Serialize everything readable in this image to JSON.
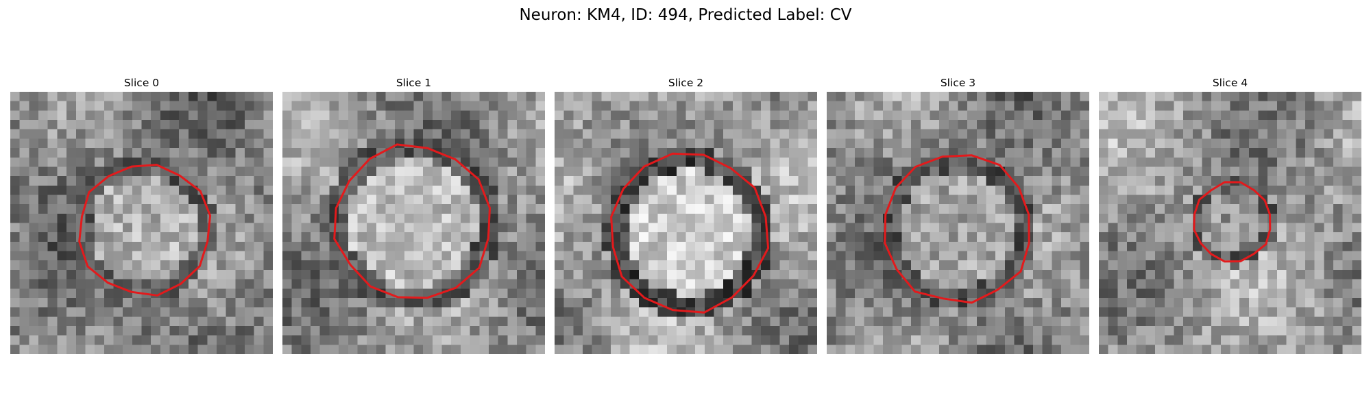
{
  "figure": {
    "title": "Neuron: KM4, ID: 494, Predicted Label: CV"
  },
  "panels": [
    {
      "title": "Slice 0"
    },
    {
      "title": "Slice 1"
    },
    {
      "title": "Slice 2"
    },
    {
      "title": "Slice 3"
    },
    {
      "title": "Slice 4"
    }
  ],
  "colors": {
    "contour": "#e31a1c",
    "image_colormap": "gray"
  }
}
